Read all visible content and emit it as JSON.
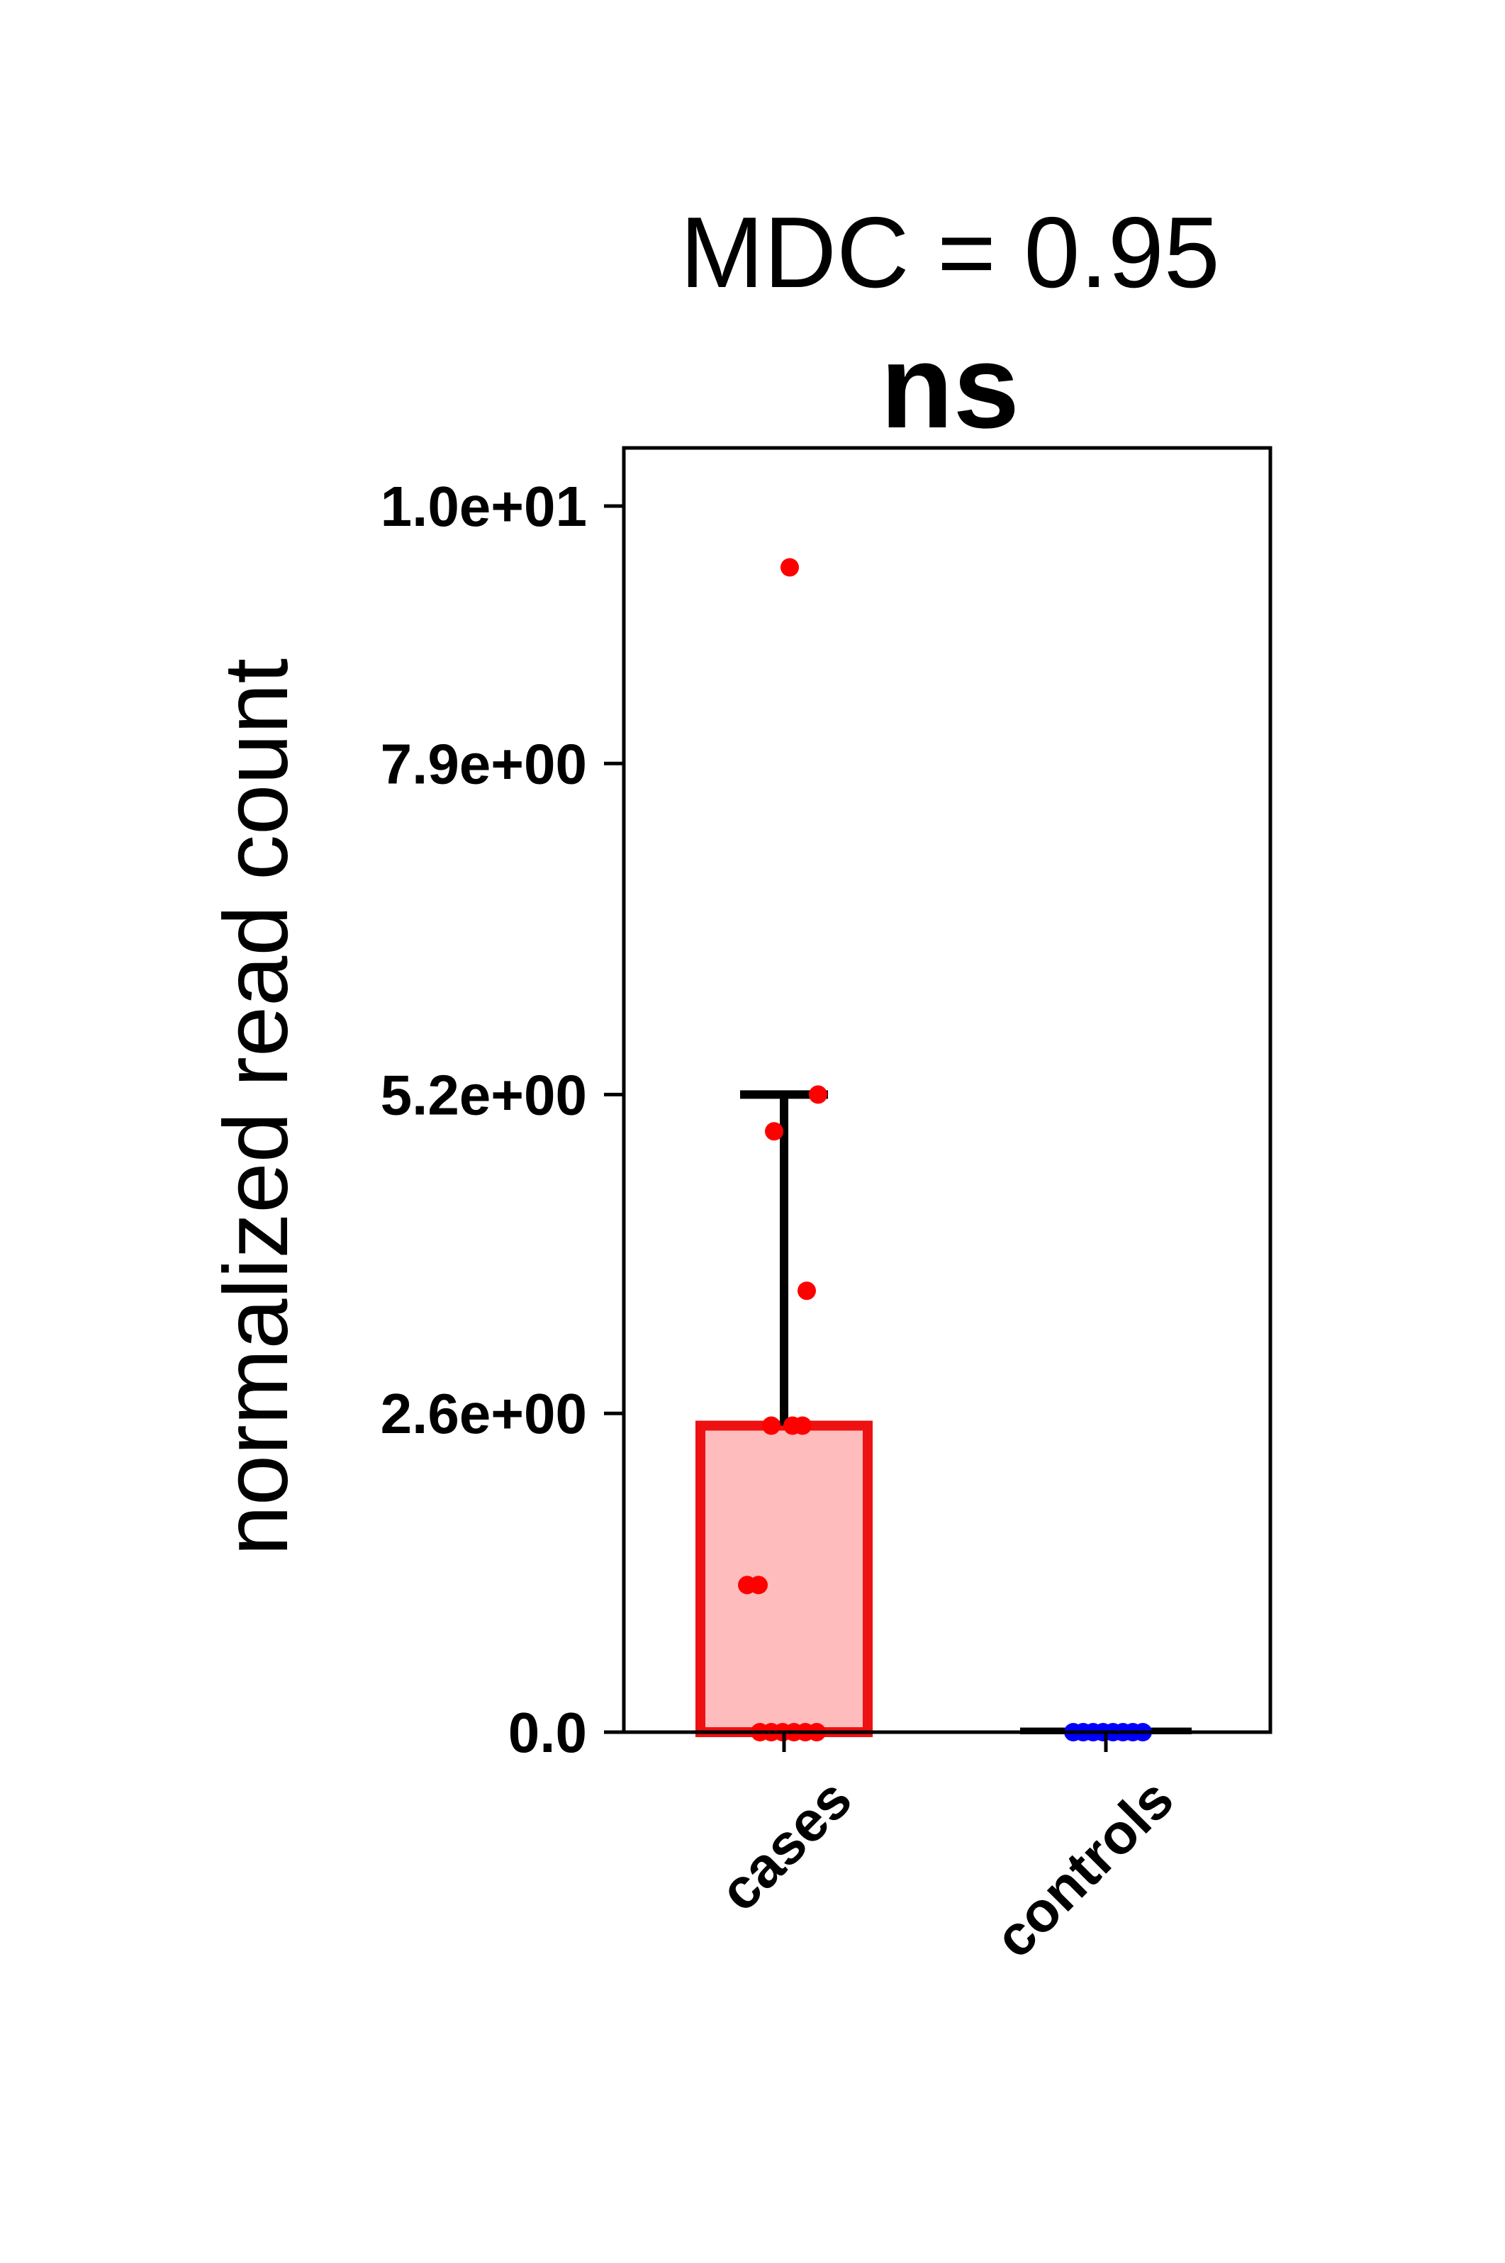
{
  "chart_data": {
    "type": "bar",
    "title": "MDC = 0.95",
    "significance": "ns",
    "ylabel": "normalized read count",
    "xlabel": "",
    "categories": [
      "cases",
      "controls"
    ],
    "ylim": [
      0,
      10.4
    ],
    "yticks": [
      0.0,
      2.6,
      5.2,
      7.9,
      10.0
    ],
    "ytick_labels": [
      "0.0",
      "2.6e+00",
      "5.2e+00",
      "7.9e+00",
      "1.0e+01"
    ],
    "grid": false,
    "series": [
      {
        "values": [
          2.5,
          0.02
        ],
        "error_upper": [
          5.2,
          0.02
        ],
        "points": [
          [
            9.5,
            5.2,
            4.9,
            3.6,
            2.5,
            2.5,
            2.5,
            1.2,
            1.2,
            0.0,
            0.0,
            0.0,
            0.0,
            0.0,
            0.0
          ],
          [
            0.0,
            0.0,
            0.0,
            0.0,
            0.0,
            0.0,
            0.0,
            0.0
          ]
        ]
      }
    ],
    "colors": {
      "cases_edge": "#ee1111",
      "cases_fill": "#ffbcbc",
      "cases_points": "#ff0000",
      "controls_points": "#0000ff",
      "error_bar": "#000000"
    }
  }
}
